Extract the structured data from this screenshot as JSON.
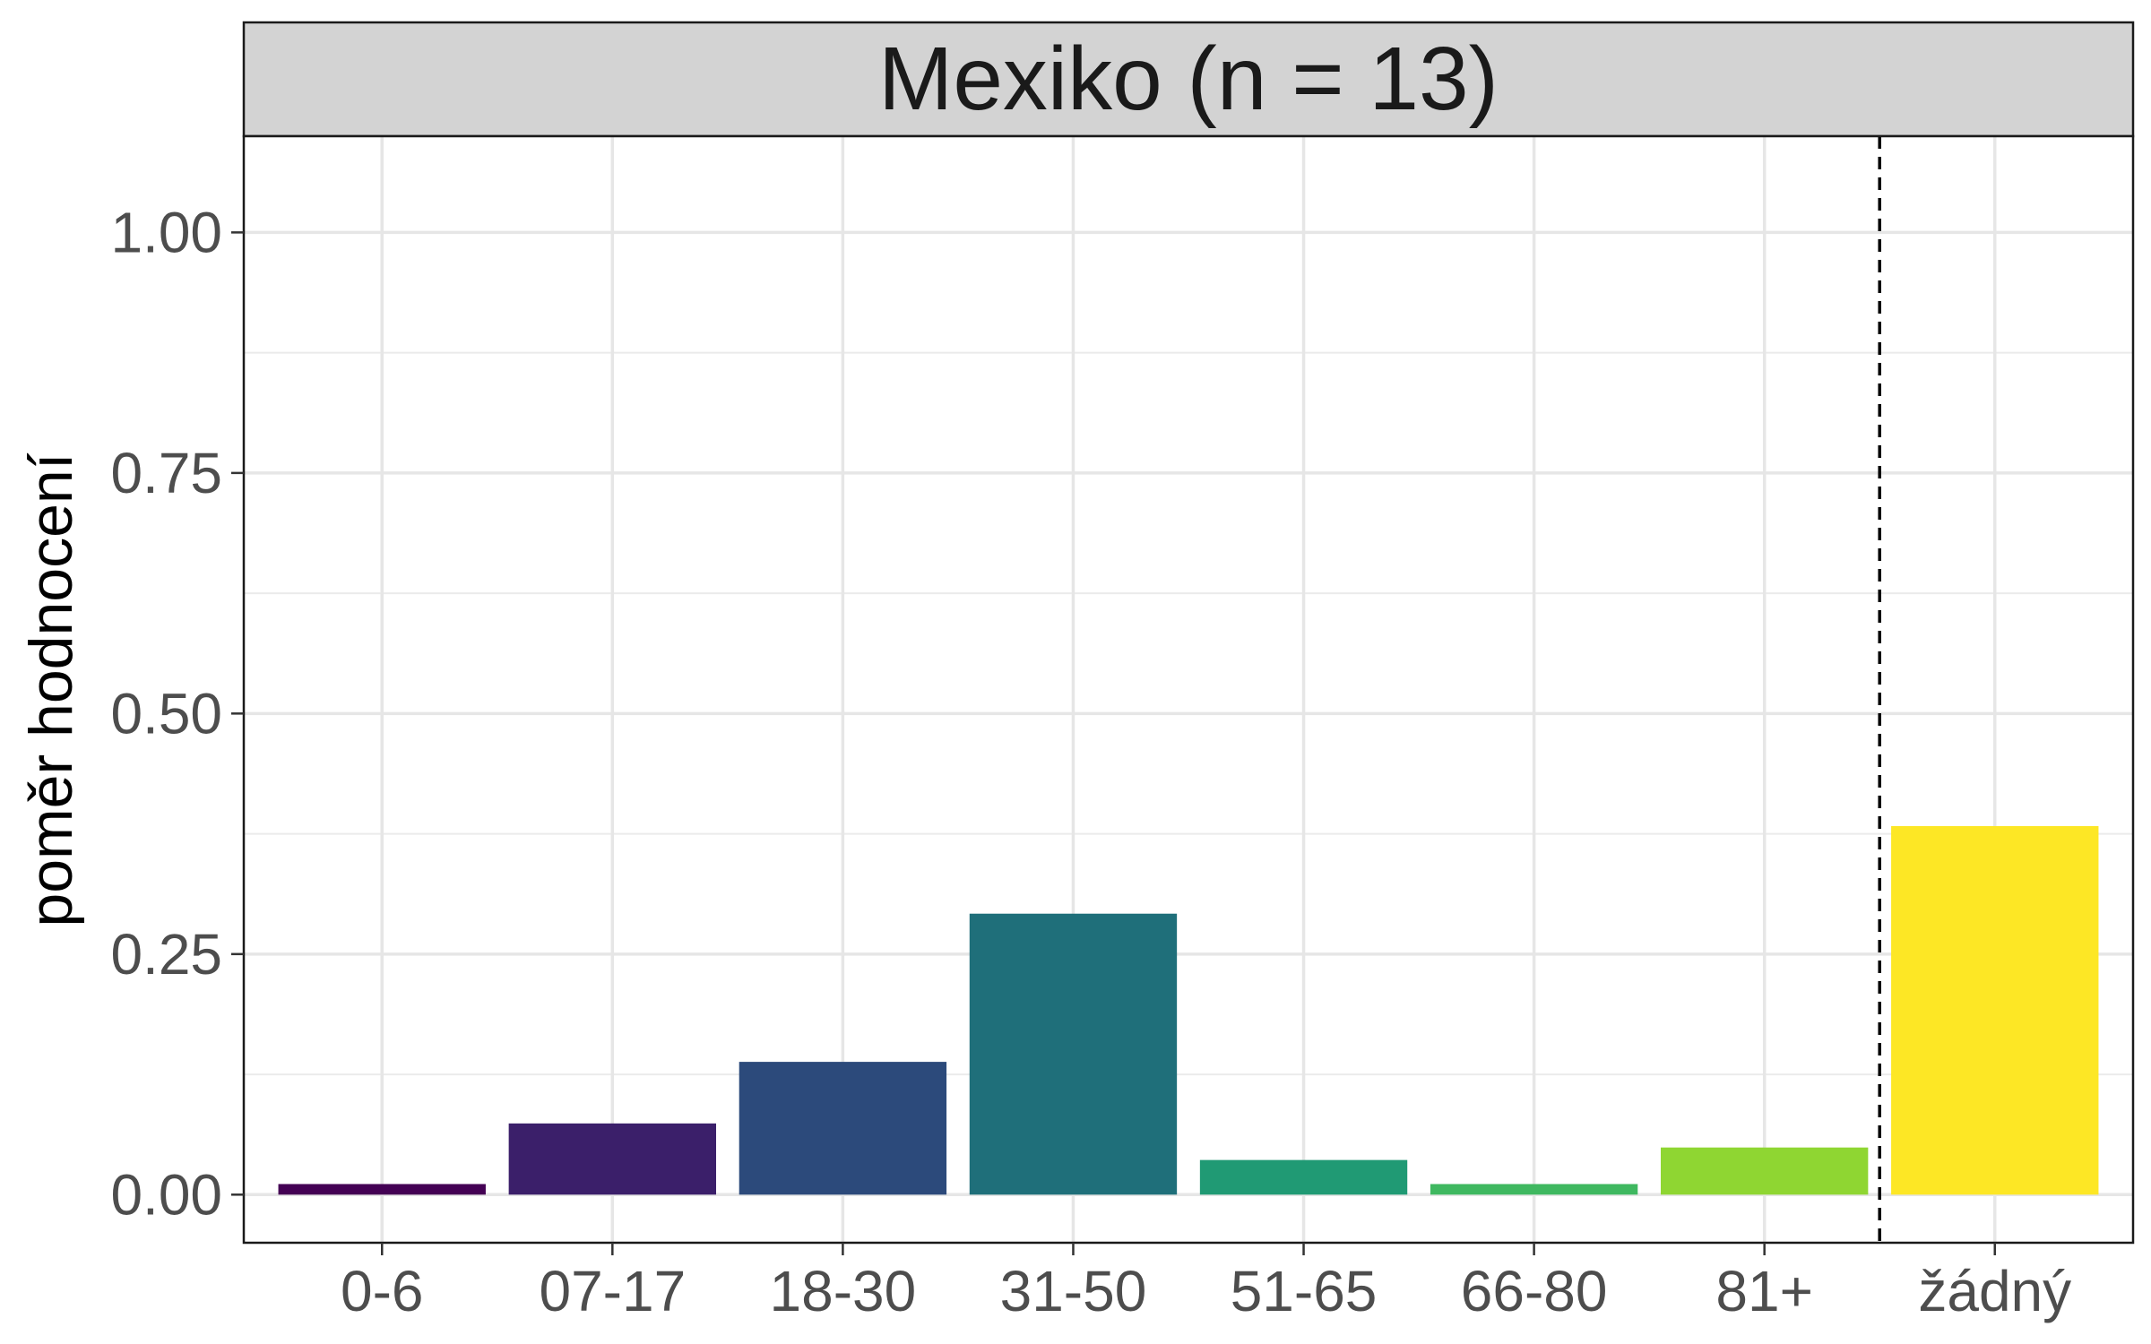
{
  "chart_data": {
    "type": "bar",
    "title": "Mexiko (n = 13)",
    "xlabel": "",
    "ylabel": "poměr hodnocení",
    "categories": [
      "0-6",
      "07-17",
      "18-30",
      "31-50",
      "51-65",
      "66-80",
      "81+",
      "žádný"
    ],
    "values": [
      0.011,
      0.074,
      0.138,
      0.292,
      0.036,
      0.011,
      0.049,
      0.383
    ],
    "colors": [
      "#440154",
      "#3b1f6a",
      "#2c4a7b",
      "#1f6f7a",
      "#209a74",
      "#3fb860",
      "#8fd632",
      "#fde725"
    ],
    "ylim": [
      -0.05,
      1.1
    ],
    "yticks": [
      0.0,
      0.25,
      0.5,
      0.75,
      1.0
    ],
    "ytick_labels": [
      "0.00",
      "0.25",
      "0.50",
      "0.75",
      "1.00"
    ],
    "reference_line": {
      "between": [
        "81+",
        "žádný"
      ],
      "style": "dashed"
    },
    "grid": true,
    "legend": "none"
  }
}
